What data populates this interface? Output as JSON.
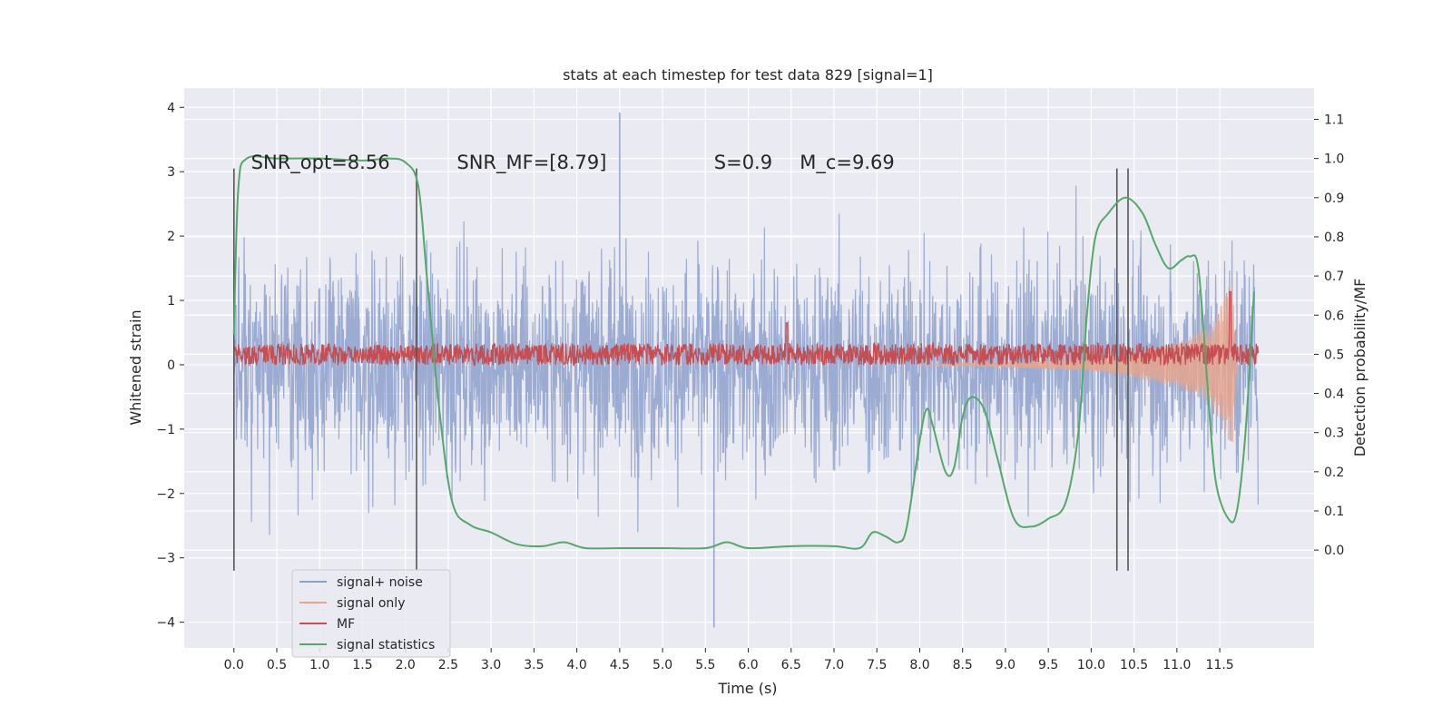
{
  "chart_data": {
    "type": "line",
    "title": "stats at each timestep for test data 829 [signal=1]",
    "xlabel": "Time (s)",
    "ylabel": "Whitened strain",
    "y2label": "Detection probability/MF",
    "xlim": [
      -0.58,
      12.6
    ],
    "ylim": [
      -4.4,
      4.3
    ],
    "y2lim": [
      -0.25,
      1.18
    ],
    "grid": true,
    "x_ticks": [
      0.0,
      0.5,
      1.0,
      1.5,
      2.0,
      2.5,
      3.0,
      3.5,
      4.0,
      4.5,
      5.0,
      5.5,
      6.0,
      6.5,
      7.0,
      7.5,
      8.0,
      8.5,
      9.0,
      9.5,
      10.0,
      10.5,
      11.0,
      11.5
    ],
    "x_tick_labels": [
      "0.0",
      "0.5",
      "1.0",
      "1.5",
      "2.0",
      "2.5",
      "3.0",
      "3.5",
      "4.0",
      "4.5",
      "5.0",
      "5.5",
      "6.0",
      "6.5",
      "7.0",
      "7.5",
      "8.0",
      "8.5",
      "9.0",
      "9.5",
      "10.0",
      "10.5",
      "11.0",
      "11.5"
    ],
    "y_ticks": [
      4,
      3,
      2,
      1,
      0,
      -1,
      -2,
      -3,
      -4
    ],
    "y_tick_labels": [
      "4",
      "3",
      "2",
      "1",
      "0",
      "−1",
      "−2",
      "−3",
      "−4"
    ],
    "y2_ticks": [
      1.1,
      1.0,
      0.9,
      0.8,
      0.7,
      0.6,
      0.5,
      0.4,
      0.3,
      0.2,
      0.1,
      0.0
    ],
    "y2_tick_labels": [
      "1.1",
      "1.0",
      "0.9",
      "0.8",
      "0.7",
      "0.6",
      "0.5",
      "0.4",
      "0.3",
      "0.2",
      "0.1",
      "0.0"
    ],
    "annotations": [
      {
        "text": "SNR_opt=8.56",
        "x": 0.2,
        "y": 3.0
      },
      {
        "text": "SNR_MF=[8.79]",
        "x": 2.6,
        "y": 3.0
      },
      {
        "text": "S=0.9",
        "x": 5.6,
        "y": 3.0
      },
      {
        "text": "M_c=9.69",
        "x": 6.6,
        "y": 3.0
      }
    ],
    "vertical_lines": [
      {
        "x": 0.0,
        "ymin": -3.2,
        "ymax": 3.05
      },
      {
        "x": 2.13,
        "ymin": -3.2,
        "ymax": 3.05
      },
      {
        "x": 10.3,
        "ymin": -3.2,
        "ymax": 3.05
      },
      {
        "x": 10.43,
        "ymin": -3.2,
        "ymax": 3.05
      }
    ],
    "legend": {
      "position": "lower-left"
    },
    "series": [
      {
        "name": "signal+ noise",
        "axis": "left",
        "color": "#8da0cb",
        "kind": "noise",
        "x_range": [
          0.0,
          11.95
        ],
        "amplitude": 1.0,
        "peak_min": -4.08,
        "peak_max": 3.92
      },
      {
        "name": "signal only",
        "axis": "left",
        "color": "#e8a58a",
        "kind": "chirp",
        "x_range": [
          8.0,
          11.7
        ],
        "envelope": [
          [
            8.0,
            0.0
          ],
          [
            9.0,
            0.04
          ],
          [
            10.0,
            0.1
          ],
          [
            10.5,
            0.2
          ],
          [
            11.0,
            0.35
          ],
          [
            11.4,
            0.6
          ],
          [
            11.6,
            1.2
          ],
          [
            11.65,
            1.3
          ],
          [
            11.7,
            0.0
          ]
        ]
      },
      {
        "name": "MF",
        "axis": "right",
        "color": "#c44e52",
        "kind": "band",
        "x_range": [
          0.0,
          11.95
        ],
        "baseline": 0.5,
        "spread": 0.028,
        "peaks": [
          [
            6.45,
            0.58
          ],
          [
            11.62,
            0.66
          ]
        ]
      },
      {
        "name": "signal statistics",
        "axis": "right",
        "color": "#55a868",
        "x": [
          0.0,
          0.05,
          0.15,
          0.5,
          1.0,
          1.5,
          1.8,
          2.0,
          2.15,
          2.25,
          2.4,
          2.55,
          2.75,
          3.0,
          3.3,
          3.6,
          3.85,
          4.1,
          4.5,
          5.0,
          5.5,
          5.75,
          6.0,
          6.5,
          7.0,
          7.3,
          7.45,
          7.6,
          7.75,
          7.85,
          8.0,
          8.08,
          8.15,
          8.3,
          8.4,
          8.5,
          8.6,
          8.75,
          8.9,
          9.1,
          9.3,
          9.5,
          9.7,
          9.85,
          9.95,
          10.05,
          10.2,
          10.4,
          10.6,
          10.75,
          10.9,
          11.05,
          11.15,
          11.25,
          11.35,
          11.45,
          11.6,
          11.7,
          11.8,
          11.9
        ],
        "y": [
          0.55,
          0.92,
          1.0,
          1.0,
          1.0,
          0.995,
          1.0,
          0.99,
          0.93,
          0.7,
          0.35,
          0.12,
          0.065,
          0.045,
          0.015,
          0.01,
          0.02,
          0.005,
          0.005,
          0.005,
          0.005,
          0.02,
          0.005,
          0.01,
          0.01,
          0.005,
          0.045,
          0.035,
          0.02,
          0.06,
          0.28,
          0.36,
          0.32,
          0.2,
          0.21,
          0.34,
          0.39,
          0.36,
          0.24,
          0.08,
          0.06,
          0.08,
          0.12,
          0.3,
          0.6,
          0.8,
          0.86,
          0.9,
          0.86,
          0.78,
          0.72,
          0.74,
          0.75,
          0.72,
          0.44,
          0.18,
          0.08,
          0.1,
          0.3,
          0.66
        ]
      }
    ]
  }
}
